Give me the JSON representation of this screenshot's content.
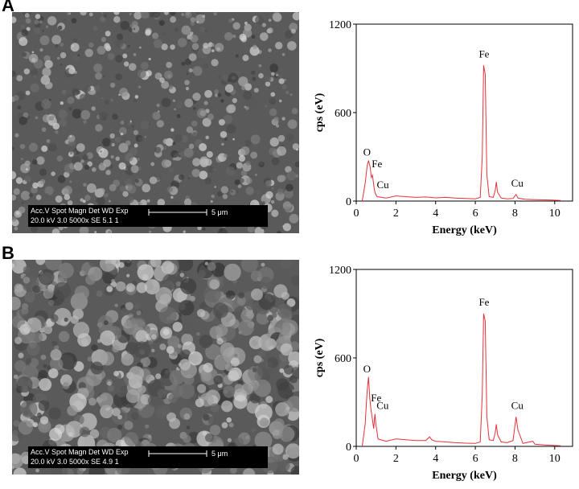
{
  "panels": [
    {
      "label": "A",
      "sem_header": "Acc.V  Spot Magn    Det  WD   Exp",
      "sem_values": "20.0 kV 3.0   5000x    SE   5.1    1",
      "scale_bar": "5 μm"
    },
    {
      "label": "B",
      "sem_header": "Acc.V  Spot Magn    Det  WD   Exp",
      "sem_values": "20.0 kV 3.0   5000x    SE   4.9    1",
      "scale_bar": "5 μm"
    }
  ],
  "chart_data": [
    {
      "type": "line",
      "color": "#e8303a",
      "xlabel": "Energy (keV)",
      "ylabel": "cps (eV)",
      "xlim": [
        0,
        10.9
      ],
      "ylim": [
        0,
        1200
      ],
      "xticks": [
        0,
        2,
        4,
        6,
        8,
        10
      ],
      "yticks": [
        0,
        600,
        1200
      ],
      "annotations": [
        "O",
        "Fe",
        "Cu",
        "Fe",
        "Cu"
      ],
      "x": [
        0.3,
        0.45,
        0.55,
        0.62,
        0.7,
        0.76,
        0.82,
        0.9,
        0.95,
        1.05,
        1.5,
        2,
        2.5,
        3,
        3.5,
        4,
        4.5,
        5,
        5.5,
        6,
        6.25,
        6.35,
        6.42,
        6.5,
        6.58,
        6.7,
        6.9,
        7.0,
        7.06,
        7.12,
        7.3,
        7.6,
        7.9,
        8.05,
        8.15,
        8.5,
        9,
        9.5,
        10,
        10.3
      ],
      "values": [
        0,
        120,
        240,
        275,
        230,
        160,
        175,
        90,
        55,
        30,
        20,
        35,
        30,
        25,
        28,
        22,
        25,
        20,
        18,
        15,
        25,
        300,
        920,
        860,
        180,
        30,
        25,
        70,
        130,
        60,
        20,
        15,
        18,
        45,
        20,
        12,
        10,
        8,
        6,
        4
      ]
    },
    {
      "type": "line",
      "color": "#e8303a",
      "xlabel": "Energy (keV)",
      "ylabel": "cps (eV)",
      "xlim": [
        0,
        10.9
      ],
      "ylim": [
        0,
        1200
      ],
      "xticks": [
        0,
        2,
        4,
        6,
        8,
        10
      ],
      "yticks": [
        0,
        600,
        1200
      ],
      "annotations": [
        "O",
        "Fe",
        "Cu",
        "Fe",
        "Cu"
      ],
      "x": [
        0.3,
        0.45,
        0.55,
        0.62,
        0.68,
        0.74,
        0.8,
        0.88,
        0.94,
        1.0,
        1.1,
        1.5,
        2,
        2.5,
        3,
        3.5,
        3.7,
        3.8,
        4,
        4.5,
        5,
        5.5,
        6,
        6.25,
        6.35,
        6.42,
        6.5,
        6.58,
        6.7,
        6.9,
        7.0,
        7.06,
        7.12,
        7.3,
        7.6,
        7.9,
        8.05,
        8.15,
        8.4,
        8.9,
        9.0,
        9.5,
        10,
        10.3
      ],
      "values": [
        0,
        150,
        380,
        470,
        330,
        250,
        200,
        120,
        220,
        140,
        50,
        35,
        50,
        45,
        40,
        40,
        65,
        45,
        35,
        30,
        25,
        22,
        20,
        30,
        350,
        900,
        850,
        200,
        45,
        40,
        90,
        150,
        80,
        30,
        25,
        40,
        200,
        110,
        20,
        35,
        15,
        10,
        6,
        4
      ]
    }
  ]
}
